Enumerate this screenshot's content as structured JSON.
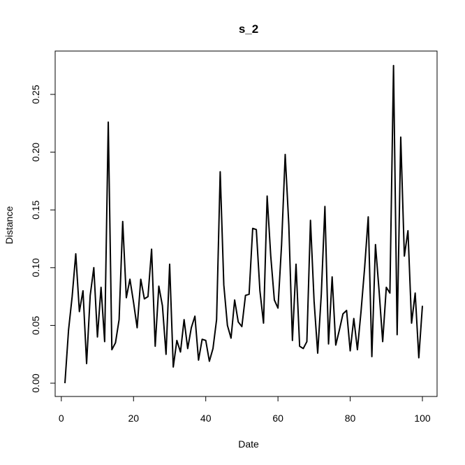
{
  "chart_data": {
    "type": "line",
    "title": "s_2",
    "xlabel": "Date",
    "ylabel": "Distance",
    "xlim": [
      1,
      100
    ],
    "ylim": [
      0,
      0.27
    ],
    "xticks": [
      0,
      20,
      40,
      60,
      80,
      100
    ],
    "xtick_labels": [
      "0",
      "20",
      "40",
      "60",
      "80",
      "100"
    ],
    "yticks": [
      0.0,
      0.05,
      0.1,
      0.15,
      0.2,
      0.25
    ],
    "ytick_labels": [
      "0.00",
      "0.05",
      "0.10",
      "0.15",
      "0.20",
      "0.25"
    ],
    "grid": false,
    "legend": "none",
    "line_color": "#000000",
    "series": [
      {
        "x": [
          1,
          2,
          3,
          4,
          5,
          6,
          7,
          8,
          9,
          10,
          11,
          12,
          13,
          14,
          15,
          16,
          17,
          18,
          19,
          20,
          21,
          22,
          23,
          24,
          25,
          26,
          27,
          28,
          29,
          30,
          31,
          32,
          33,
          34,
          35,
          36,
          37,
          38,
          39,
          40,
          41,
          42,
          43,
          44,
          45,
          46,
          47,
          48,
          49,
          50,
          51,
          52,
          53,
          54,
          55,
          56,
          57,
          58,
          59,
          60,
          61,
          62,
          63,
          64,
          65,
          66,
          67,
          68,
          69,
          70,
          71,
          72,
          73,
          74,
          75,
          76,
          77,
          78,
          79,
          80,
          81,
          82,
          83,
          84,
          85,
          86,
          87,
          88,
          89,
          90,
          91,
          92,
          93,
          94,
          95,
          96,
          97,
          98,
          99,
          100
        ],
        "values": [
          0.0,
          0.046,
          0.075,
          0.112,
          0.062,
          0.08,
          0.017,
          0.076,
          0.1,
          0.04,
          0.083,
          0.036,
          0.226,
          0.029,
          0.035,
          0.055,
          0.14,
          0.074,
          0.09,
          0.07,
          0.048,
          0.09,
          0.073,
          0.075,
          0.116,
          0.032,
          0.084,
          0.067,
          0.025,
          0.103,
          0.014,
          0.037,
          0.027,
          0.055,
          0.03,
          0.048,
          0.058,
          0.02,
          0.038,
          0.037,
          0.019,
          0.03,
          0.055,
          0.183,
          0.085,
          0.05,
          0.039,
          0.072,
          0.053,
          0.049,
          0.076,
          0.077,
          0.134,
          0.133,
          0.08,
          0.052,
          0.162,
          0.11,
          0.072,
          0.065,
          0.12,
          0.198,
          0.137,
          0.037,
          0.103,
          0.032,
          0.03,
          0.036,
          0.141,
          0.071,
          0.026,
          0.077,
          0.153,
          0.034,
          0.092,
          0.033,
          0.046,
          0.06,
          0.063,
          0.028,
          0.056,
          0.029,
          0.062,
          0.1,
          0.144,
          0.023,
          0.12,
          0.08,
          0.036,
          0.083,
          0.078,
          0.275,
          0.042,
          0.213,
          0.11,
          0.132,
          0.052,
          0.078,
          0.022,
          0.067
        ]
      }
    ]
  }
}
